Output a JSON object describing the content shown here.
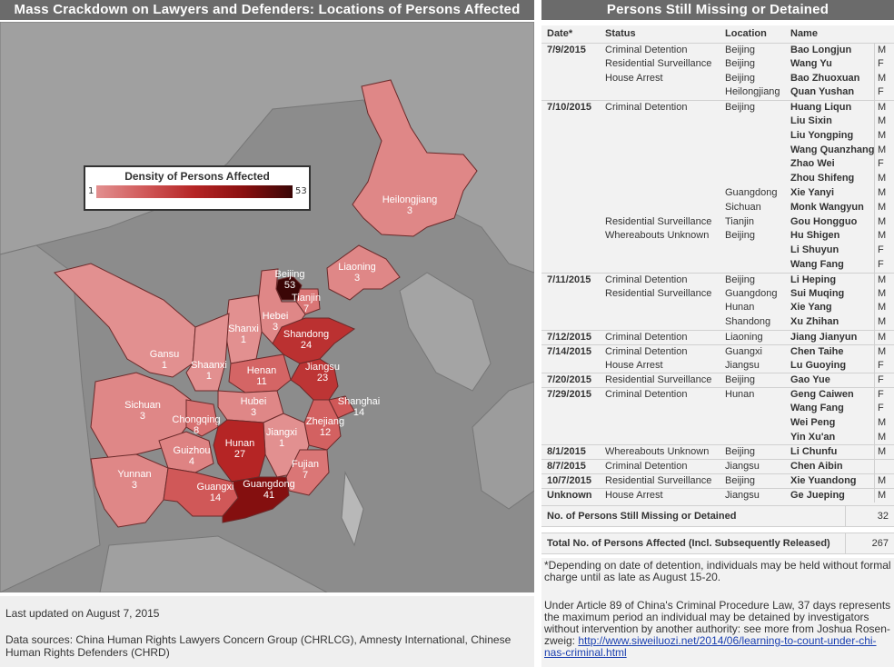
{
  "map_title": "Mass Crackdown on Lawyers and Defenders: Locations of Persons Affected",
  "right_title": "Persons Still Missing or Detained",
  "legend": {
    "title": "Density of Persons Affected",
    "min": "1",
    "max": "53",
    "color_min": "#e29090",
    "color_max": "#3a0606"
  },
  "provinces": [
    {
      "name": "Heilongjiang",
      "count": "3",
      "value": 3
    },
    {
      "name": "Liaoning",
      "count": "3",
      "value": 3
    },
    {
      "name": "Beijing",
      "count": "53",
      "value": 53
    },
    {
      "name": "Tianjin",
      "count": "7",
      "value": 7
    },
    {
      "name": "Hebei",
      "count": "3",
      "value": 3
    },
    {
      "name": "Shanxi",
      "count": "1",
      "value": 1
    },
    {
      "name": "Shandong",
      "count": "24",
      "value": 24
    },
    {
      "name": "Gansu",
      "count": "1",
      "value": 1
    },
    {
      "name": "Shaanxi",
      "count": "1",
      "value": 1
    },
    {
      "name": "Henan",
      "count": "11",
      "value": 11
    },
    {
      "name": "Jiangsu",
      "count": "23",
      "value": 23
    },
    {
      "name": "Shanghai",
      "count": "14",
      "value": 14
    },
    {
      "name": "Sichuan",
      "count": "3",
      "value": 3
    },
    {
      "name": "Chongqing",
      "count": "8",
      "value": 8
    },
    {
      "name": "Hubei",
      "count": "3",
      "value": 3
    },
    {
      "name": "Zhejiang",
      "count": "12",
      "value": 12
    },
    {
      "name": "Jiangxi",
      "count": "1",
      "value": 1
    },
    {
      "name": "Guizhou",
      "count": "4",
      "value": 4
    },
    {
      "name": "Hunan",
      "count": "27",
      "value": 27
    },
    {
      "name": "Fujian",
      "count": "7",
      "value": 7
    },
    {
      "name": "Yunnan",
      "count": "3",
      "value": 3
    },
    {
      "name": "Guangxi",
      "count": "14",
      "value": 14
    },
    {
      "name": "Guangdong",
      "count": "41",
      "value": 41
    }
  ],
  "footer": {
    "updated": "Last updated on August 7, 2015",
    "sources": "Data sources: China Human Rights Lawyers Concern Group (CHRLCG), Amnesty International, Chinese Human Rights Defenders (CHRD)"
  },
  "table": {
    "headers": {
      "date": "Date*",
      "status": "Status",
      "location": "Location",
      "name": "Name"
    },
    "rows": [
      {
        "date": "7/9/2015",
        "status": "Criminal Detention",
        "location": "Beijing",
        "name": "Bao Longjun",
        "sex": "M"
      },
      {
        "date": "",
        "status": "Residential Surveillance",
        "location": "Beijing",
        "name": "Wang Yu",
        "sex": "F"
      },
      {
        "date": "",
        "status": "House Arrest",
        "location": "Beijing",
        "name": "Bao Zhuoxuan",
        "sex": "M"
      },
      {
        "date": "",
        "status": "",
        "location": "Heilongjiang",
        "name": "Quan Yushan",
        "sex": "F"
      },
      {
        "date": "7/10/2015",
        "status": "Criminal Detention",
        "location": "Beijing",
        "name": "Huang Liqun",
        "sex": "M"
      },
      {
        "date": "",
        "status": "",
        "location": "",
        "name": "Liu Sixin",
        "sex": "M"
      },
      {
        "date": "",
        "status": "",
        "location": "",
        "name": "Liu Yongping",
        "sex": "M"
      },
      {
        "date": "",
        "status": "",
        "location": "",
        "name": "Wang Quanzhang",
        "sex": "M"
      },
      {
        "date": "",
        "status": "",
        "location": "",
        "name": "Zhao Wei",
        "sex": "F"
      },
      {
        "date": "",
        "status": "",
        "location": "",
        "name": "Zhou Shifeng",
        "sex": "M"
      },
      {
        "date": "",
        "status": "",
        "location": "Guangdong",
        "name": "Xie Yanyi",
        "sex": "M"
      },
      {
        "date": "",
        "status": "",
        "location": "Sichuan",
        "name": "Monk Wangyun",
        "sex": "M"
      },
      {
        "date": "",
        "status": "Residential Surveillance",
        "location": "Tianjin",
        "name": "Gou Hongguo",
        "sex": "M"
      },
      {
        "date": "",
        "status": "Whereabouts Unknown",
        "location": "Beijing",
        "name": "Hu Shigen",
        "sex": "M"
      },
      {
        "date": "",
        "status": "",
        "location": "",
        "name": "Li Shuyun",
        "sex": "F"
      },
      {
        "date": "",
        "status": "",
        "location": "",
        "name": "Wang Fang",
        "sex": "F"
      },
      {
        "date": "7/11/2015",
        "status": "Criminal Detention",
        "location": "Beijing",
        "name": "Li Heping",
        "sex": "M"
      },
      {
        "date": "",
        "status": "Residential Surveillance",
        "location": "Guangdong",
        "name": "Sui Muqing",
        "sex": "M"
      },
      {
        "date": "",
        "status": "",
        "location": "Hunan",
        "name": "Xie Yang",
        "sex": "M"
      },
      {
        "date": "",
        "status": "",
        "location": "Shandong",
        "name": "Xu Zhihan",
        "sex": "M"
      },
      {
        "date": "7/12/2015",
        "status": "Criminal Detention",
        "location": "Liaoning",
        "name": "Jiang Jianyun",
        "sex": "M"
      },
      {
        "date": "7/14/2015",
        "status": "Criminal Detention",
        "location": "Guangxi",
        "name": "Chen Taihe",
        "sex": "M"
      },
      {
        "date": "",
        "status": "House Arrest",
        "location": "Jiangsu",
        "name": "Lu Guoying",
        "sex": "F"
      },
      {
        "date": "7/20/2015",
        "status": "Residential Surveillance",
        "location": "Beijing",
        "name": "Gao Yue",
        "sex": "F"
      },
      {
        "date": "7/29/2015",
        "status": "Criminal Detention",
        "location": "Hunan",
        "name": "Geng Caiwen",
        "sex": "F"
      },
      {
        "date": "",
        "status": "",
        "location": "",
        "name": "Wang Fang",
        "sex": "F"
      },
      {
        "date": "",
        "status": "",
        "location": "",
        "name": "Wei Peng",
        "sex": "M"
      },
      {
        "date": "",
        "status": "",
        "location": "",
        "name": "Yin Xu'an",
        "sex": "M"
      },
      {
        "date": "8/1/2015",
        "status": "Whereabouts Unknown",
        "location": "Beijing",
        "name": "Li Chunfu",
        "sex": "M"
      },
      {
        "date": "8/7/2015",
        "status": "Criminal Detention",
        "location": "Jiangsu",
        "name": "Chen Aibin",
        "sex": ""
      },
      {
        "date": "10/7/2015",
        "status": "Residential Surveillance",
        "location": "Beijing",
        "name": "Xie Yuandong",
        "sex": "M"
      },
      {
        "date": "Unknown",
        "status": "House Arrest",
        "location": "Jiangsu",
        "name": "Ge Jueping",
        "sex": "M"
      }
    ]
  },
  "summary": {
    "missing_label": "No. of Persons Still Missing or Detained",
    "missing_value": "32",
    "total_label": "Total No. of Persons Affected (Incl. Subsequently Released)",
    "total_value": "267"
  },
  "notes": {
    "note1": "*Depending on date of detention, individuals may be held without formal charge until as late as August 15-20.",
    "note2": "Under Article 89 of China's Criminal Procedure Law, 37 days represents the maximum period an individual may be detained by investigators without intervention by another authority: see more from Joshua Rosen-zweig:",
    "link": "http://www.siweiluozi.net/2014/06/learning-to-count-under-chi-nas-criminal.html"
  }
}
